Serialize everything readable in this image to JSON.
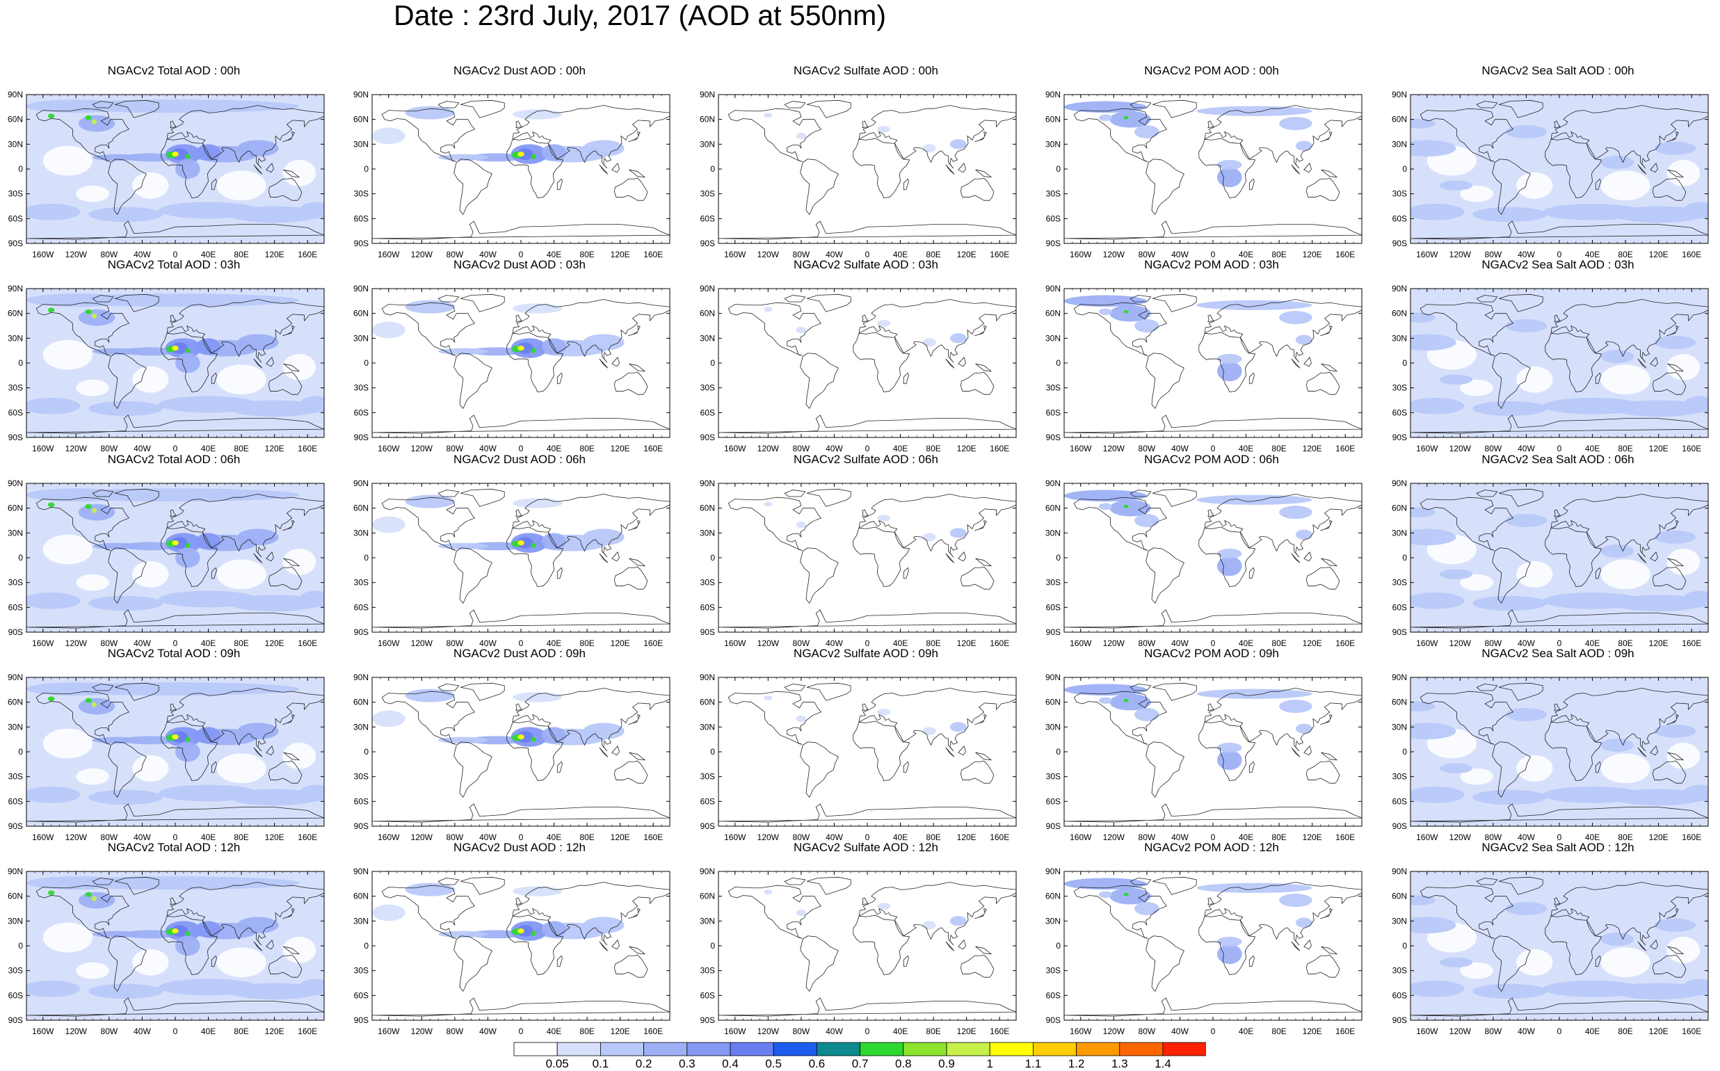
{
  "title": "Date : 23rd July, 2017 (AOD at 550nm)",
  "lat_labels": [
    "90N",
    "60N",
    "30N",
    "0",
    "30S",
    "60S",
    "90S"
  ],
  "lon_labels": [
    "160W",
    "120W",
    "80W",
    "40W",
    "0",
    "40E",
    "80E",
    "120E",
    "160E"
  ],
  "panels": [
    [
      "NGACv2 Total AOD : 00h",
      "NGACv2 Dust AOD : 00h",
      "NGACv2 Sulfate AOD : 00h",
      "NGACv2 POM AOD : 00h",
      "NGACv2 Sea Salt AOD : 00h"
    ],
    [
      "NGACv2 Total AOD : 03h",
      "NGACv2 Dust AOD : 03h",
      "NGACv2 Sulfate AOD : 03h",
      "NGACv2 POM AOD : 03h",
      "NGACv2 Sea Salt AOD : 03h"
    ],
    [
      "NGACv2 Total AOD : 06h",
      "NGACv2 Dust AOD : 06h",
      "NGACv2 Sulfate AOD : 06h",
      "NGACv2 POM AOD : 06h",
      "NGACv2 Sea Salt AOD : 06h"
    ],
    [
      "NGACv2 Total AOD : 09h",
      "NGACv2 Dust AOD : 09h",
      "NGACv2 Sulfate AOD : 09h",
      "NGACv2 POM AOD : 09h",
      "NGACv2 Sea Salt  AOD : 09h"
    ],
    [
      "NGACv2 Total AOD :  12h",
      "NGACv2 Dust AOD : 12h",
      "NGACv2 Sulfate AOD : 12h",
      "NGACv2 POM  AOD : 12h",
      "NGACv2 Sea Salt AOD : 12h"
    ]
  ],
  "colorbar": {
    "labels": [
      "0.05",
      "0.1",
      "0.2",
      "0.3",
      "0.4",
      "0.5",
      "0.6",
      "0.7",
      "0.8",
      "0.9",
      "1",
      "1.1",
      "1.2",
      "1.3",
      "1.4"
    ],
    "colors": [
      "#ffffff",
      "#d7e0fb",
      "#b8c8f9",
      "#9db0f6",
      "#8498f4",
      "#6a7ef2",
      "#1e5cf0",
      "#0c8a8e",
      "#2ed82e",
      "#8ce42c",
      "#c6f04a",
      "#ffff00",
      "#ffcc00",
      "#ff9900",
      "#ff6600",
      "#ff2200"
    ]
  }
}
